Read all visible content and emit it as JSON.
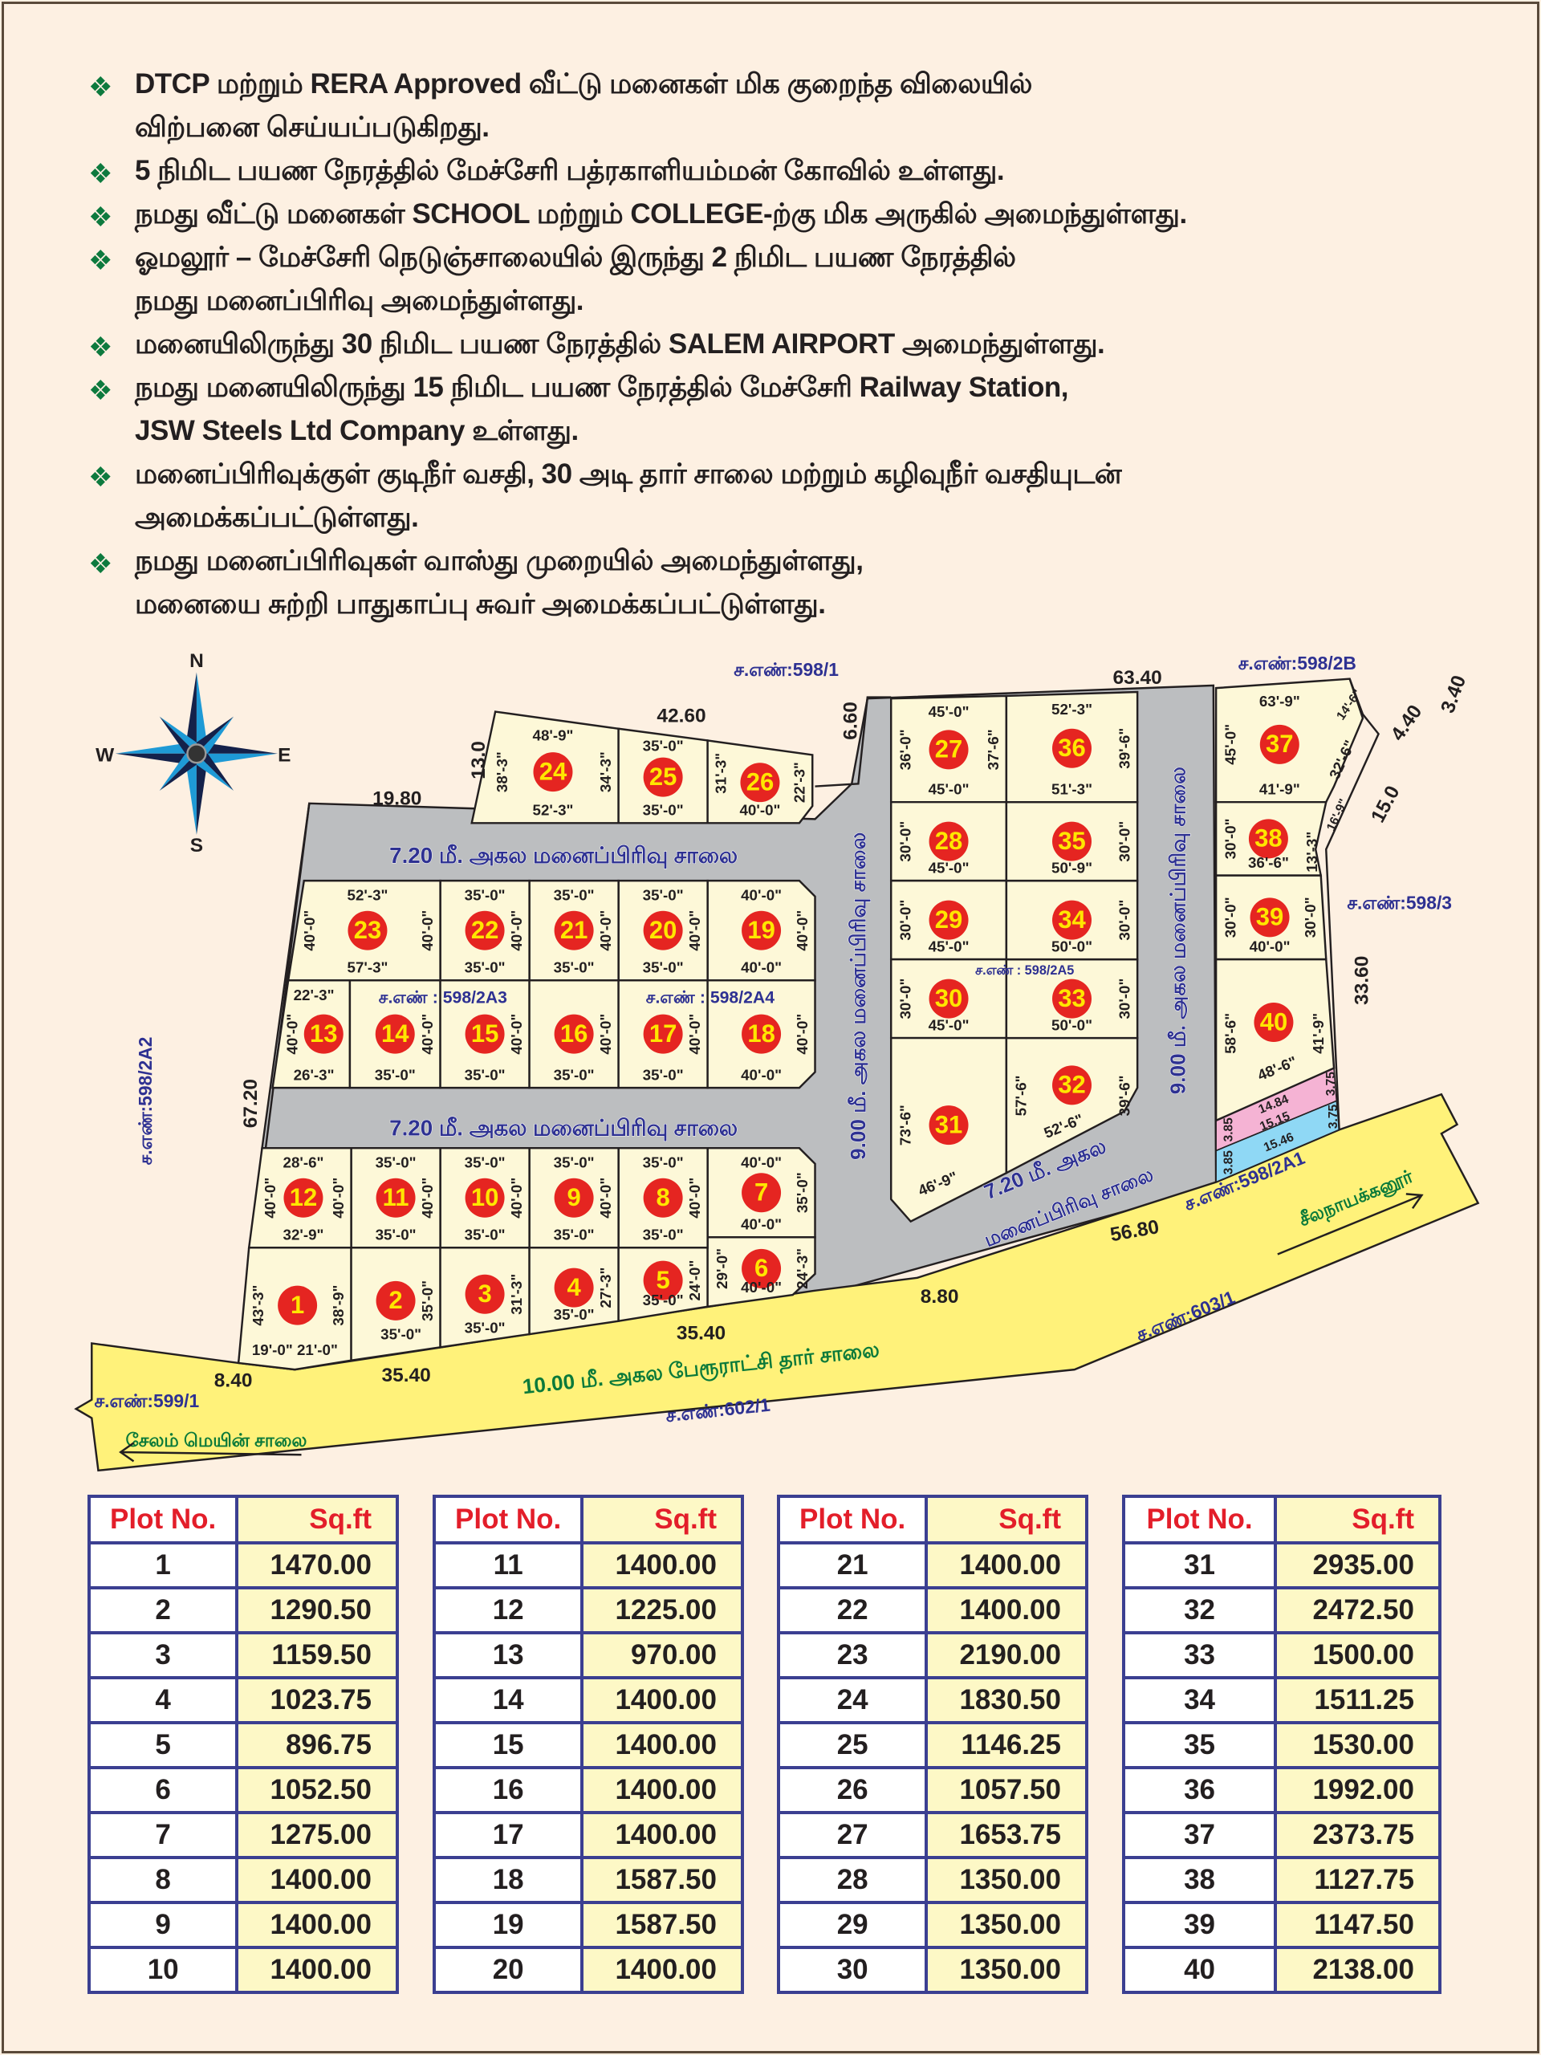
{
  "bullets": [
    {
      "lines": [
        "DTCP மற்றும் RERA Approved  வீட்டு மனைகள் மிக குறைந்த விலையில்",
        "விற்பனை செய்யப்படுகிறது."
      ]
    },
    {
      "lines": [
        "5 நிமிட பயண நேரத்தில் மேச்சேரி பத்ரகாளியம்மன் கோவில் உள்ளது."
      ]
    },
    {
      "lines": [
        "நமது வீட்டு மனைகள் SCHOOL மற்றும் COLLEGE-ற்கு மிக அருகில் அமைந்துள்ளது."
      ]
    },
    {
      "lines": [
        "ஓமலூர் – மேச்சேரி நெடுஞ்சாலையில் இருந்து 2 நிமிட பயண நேரத்தில்",
        "நமது மனைப்பிரிவு அமைந்துள்ளது."
      ]
    },
    {
      "lines": [
        "மனையிலிருந்து 30 நிமிட பயண நேரத்தில் SALEM AIRPORT அமைந்துள்ளது."
      ]
    },
    {
      "lines": [
        "நமது மனையிலிருந்து 15 நிமிட பயண நேரத்தில் மேச்சேரி Railway Station,",
        "JSW Steels Ltd Company உள்ளது."
      ]
    },
    {
      "lines": [
        "மனைப்பிரிவுக்குள் குடிநீர் வசதி, 30 அடி தார் சாலை மற்றும் கழிவுநீர் வசதியுடன்",
        "அமைக்கப்பட்டுள்ளது."
      ]
    },
    {
      "lines": [
        "நமது மனைப்பிரிவுகள் வாஸ்து முறையில் அமைந்துள்ளது,",
        "மனையை சுற்றி பாதுகாப்பு சுவர் அமைக்கப்பட்டுள்ளது."
      ]
    }
  ],
  "bullet_icon": "diamond-dots-icon",
  "colors": {
    "background": "#fdf0e2",
    "plot": "#fdf8d8",
    "road_internal": "#bcbec0",
    "road_main": "#fff27a",
    "plot_badge": "#e52521",
    "plot_number": "#ffe600",
    "survey_text": "#2e3192",
    "green_text": "#0b7a3a",
    "table_border": "#3b3f91",
    "table_header": "#e31e2a",
    "pink_strip": "#f5b3d4",
    "blue_strip": "#8fd8f5"
  },
  "compass": {
    "n": "N",
    "e": "E",
    "s": "S",
    "w": "W"
  },
  "map": {
    "plots": [
      {
        "no": "1",
        "left": "43'-3\"",
        "right": "38'-9\"",
        "bottom": "19'-0\"   21'-0\""
      },
      {
        "no": "2",
        "right": "35'-0\"",
        "bottom": "35'-0\""
      },
      {
        "no": "3",
        "right": "31'-3\"",
        "bottom": "35'-0\""
      },
      {
        "no": "4",
        "right": "27'-3\"",
        "bottom": "35'-0\""
      },
      {
        "no": "5",
        "right": "24'-0\"",
        "bottom": "35'-0\""
      },
      {
        "no": "6",
        "left": "29'-0\"",
        "right": "24'-3\"",
        "bottom": "40'-0\""
      },
      {
        "no": "7",
        "top": "40'-0\"",
        "bottom": "40'-0\"",
        "right": "35'-0\""
      },
      {
        "no": "8",
        "top": "35'-0\"",
        "bottom": "35'-0\"",
        "right": "40'-0\""
      },
      {
        "no": "9",
        "top": "35'-0\"",
        "bottom": "35'-0\"",
        "right": "40'-0\""
      },
      {
        "no": "10",
        "top": "35'-0\"",
        "bottom": "35'-0\"",
        "right": "40'-0\""
      },
      {
        "no": "11",
        "top": "35'-0\"",
        "bottom": "35'-0\"",
        "right": "40'-0\""
      },
      {
        "no": "12",
        "top": "28'-6\"",
        "bottom": "32'-9\"",
        "left": "40'-0\"",
        "right": "40'-0\""
      },
      {
        "no": "13",
        "top": "22'-3\"",
        "bottom": "26'-3\"",
        "left": "40'-0\""
      },
      {
        "no": "14",
        "bottom": "35'-0\"",
        "right": "40'-0\""
      },
      {
        "no": "15",
        "bottom": "35'-0\"",
        "right": "40'-0\""
      },
      {
        "no": "16",
        "bottom": "35'-0\"",
        "right": "40'-0\""
      },
      {
        "no": "17",
        "bottom": "35'-0\"",
        "right": "40'-0\""
      },
      {
        "no": "18",
        "bottom": "40'-0\"",
        "right": "40'-0\""
      },
      {
        "no": "19",
        "top": "40'-0\"",
        "bottom": "40'-0\"",
        "right": "40'-0\""
      },
      {
        "no": "20",
        "top": "35'-0\"",
        "bottom": "35'-0\"",
        "right": "40'-0\""
      },
      {
        "no": "21",
        "top": "35'-0\"",
        "bottom": "35'-0\"",
        "right": "40'-0\""
      },
      {
        "no": "22",
        "top": "35'-0\"",
        "bottom": "35'-0\"",
        "right": "40'-0\""
      },
      {
        "no": "23",
        "top": "52'-3\"",
        "bottom": "57'-3\"",
        "left": "40'-0\"",
        "right": "40'-0\""
      },
      {
        "no": "24",
        "top": "48'-9\"",
        "bottom": "52'-3\"",
        "left": "38'-3\"",
        "right": "34'-3\""
      },
      {
        "no": "25",
        "top": "35'-0\"",
        "bottom": "35'-0\""
      },
      {
        "no": "26",
        "left": "31'-3\"",
        "bottom": "40'-0\"",
        "right": "22'-3\""
      },
      {
        "no": "27",
        "top": "45'-0\"",
        "bottom": "45'-0\"",
        "left": "36'-0\"",
        "right": "37'-6\""
      },
      {
        "no": "28",
        "bottom": "45'-0\"",
        "left": "30'-0\""
      },
      {
        "no": "29",
        "bottom": "45'-0\"",
        "left": "30'-0\""
      },
      {
        "no": "30",
        "bottom": "45'-0\"",
        "left": "30'-0\""
      },
      {
        "no": "31",
        "left": "73'-6\"",
        "bottom": "46'-9\""
      },
      {
        "no": "32",
        "left": "57'-6\"",
        "right": "39'-6\"",
        "bottom": "52'-6\""
      },
      {
        "no": "33",
        "bottom": "50'-0\"",
        "right": "30'-0\""
      },
      {
        "no": "34",
        "bottom": "50'-0\"",
        "right": "30'-0\""
      },
      {
        "no": "35",
        "bottom": "50'-9\"",
        "right": "30'-0\""
      },
      {
        "no": "36",
        "top": "52'-3\"",
        "bottom": "51'-3\"",
        "right": "39'-6\""
      },
      {
        "no": "37",
        "top": "63'-9\"",
        "bottom": "41'-9\"",
        "left": "45'-0\"",
        "right": "32'-6\"",
        "extra": "14'-6\""
      },
      {
        "no": "38",
        "bottom": "36'-6\"",
        "left": "30'-0\"",
        "right": "13'-3\"",
        "extra": "16'-9\""
      },
      {
        "no": "39",
        "bottom": "40'-0\"",
        "left": "30'-0\"",
        "right": "30'-0\""
      },
      {
        "no": "40",
        "bottom": "48'-6\"",
        "left": "58'-6\"",
        "right": "41'-9\""
      }
    ],
    "survey_numbers": [
      "ச.எண்:598/1",
      "ச.எண்:598/2B",
      "ச.எண்:598/3",
      "ச.எண்:598/2A2",
      "ச.எண் : 598/2A3",
      "ச.எண் : 598/2A4",
      "ச.எண் : 598/2A5",
      "ச.எண்:598/2A1",
      "ச.எண்:603/1",
      "ச.எண்:599/1",
      "ச.எண்:602/1"
    ],
    "measurements": [
      "19.80",
      "13.0",
      "42.60",
      "6.60",
      "63.40",
      "3.40",
      "4.40",
      "15.0",
      "33.60",
      "67.20",
      "8.40",
      "35.40",
      "35.40",
      "8.80",
      "56.80",
      "14.84",
      "15.15",
      "3.85",
      "3.75",
      "15.46",
      "3.85",
      "3.75"
    ],
    "road_names": [
      "7.20 மீ. அகல மனைப்பிரிவு சாலை",
      "7.20 மீ. அகல மனைப்பிரிவு சாலை",
      "9.00 மீ. அகல மனைப்பிரிவு சாலை",
      "9.00 மீ. அகல மனைப்பிரிவு சாலை",
      "7.20 மீ. அகல",
      "மனைப்பிரிவு சாலை"
    ],
    "main_roads": [
      "10.00 மீ. அகல பேரூராட்சி தார் சாலை",
      "சேலம் மெயின் சாலை",
      "சீலநாயக்கனூர்"
    ]
  },
  "tables": [
    {
      "header": [
        "Plot No.",
        "Sq.ft"
      ],
      "rows": [
        [
          "1",
          "1470.00"
        ],
        [
          "2",
          "1290.50"
        ],
        [
          "3",
          "1159.50"
        ],
        [
          "4",
          "1023.75"
        ],
        [
          "5",
          "896.75"
        ],
        [
          "6",
          "1052.50"
        ],
        [
          "7",
          "1275.00"
        ],
        [
          "8",
          "1400.00"
        ],
        [
          "9",
          "1400.00"
        ],
        [
          "10",
          "1400.00"
        ]
      ]
    },
    {
      "header": [
        "Plot No.",
        "Sq.ft"
      ],
      "rows": [
        [
          "11",
          "1400.00"
        ],
        [
          "12",
          "1225.00"
        ],
        [
          "13",
          "970.00"
        ],
        [
          "14",
          "1400.00"
        ],
        [
          "15",
          "1400.00"
        ],
        [
          "16",
          "1400.00"
        ],
        [
          "17",
          "1400.00"
        ],
        [
          "18",
          "1587.50"
        ],
        [
          "19",
          "1587.50"
        ],
        [
          "20",
          "1400.00"
        ]
      ]
    },
    {
      "header": [
        "Plot No.",
        "Sq.ft"
      ],
      "rows": [
        [
          "21",
          "1400.00"
        ],
        [
          "22",
          "1400.00"
        ],
        [
          "23",
          "2190.00"
        ],
        [
          "24",
          "1830.50"
        ],
        [
          "25",
          "1146.25"
        ],
        [
          "26",
          "1057.50"
        ],
        [
          "27",
          "1653.75"
        ],
        [
          "28",
          "1350.00"
        ],
        [
          "29",
          "1350.00"
        ],
        [
          "30",
          "1350.00"
        ]
      ]
    },
    {
      "header": [
        "Plot No.",
        "Sq.ft"
      ],
      "rows": [
        [
          "31",
          "2935.00"
        ],
        [
          "32",
          "2472.50"
        ],
        [
          "33",
          "1500.00"
        ],
        [
          "34",
          "1511.25"
        ],
        [
          "35",
          "1530.00"
        ],
        [
          "36",
          "1992.00"
        ],
        [
          "37",
          "2373.75"
        ],
        [
          "38",
          "1127.75"
        ],
        [
          "39",
          "1147.50"
        ],
        [
          "40",
          "2138.00"
        ]
      ]
    }
  ]
}
